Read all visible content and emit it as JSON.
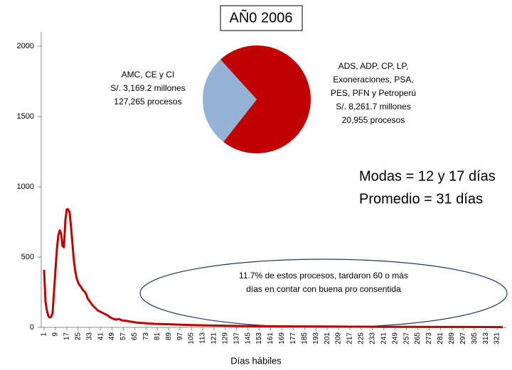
{
  "chart_data": [
    {
      "type": "line",
      "title": "AÑ0 2006",
      "x_label": "Días hábiles",
      "annotations": [
        "Modas = 12 y 17 días",
        "Promedio = 31 días"
      ],
      "ellipse_note": [
        "11.7% de estos procesos, tardaron 60 o más",
        "días en contar con buena pro consentida"
      ],
      "x": [
        1,
        2,
        3,
        4,
        5,
        6,
        7,
        8,
        9,
        10,
        11,
        12,
        13,
        14,
        15,
        16,
        17,
        18,
        19,
        20,
        21,
        22,
        23,
        24,
        25,
        26,
        27,
        28,
        29,
        30,
        31,
        32,
        33,
        34,
        35,
        36,
        37,
        38,
        39,
        40,
        41,
        42,
        43,
        44,
        45,
        46,
        47,
        48,
        49,
        50,
        52,
        54,
        56,
        58,
        60,
        63,
        66,
        70,
        75,
        80,
        90,
        100,
        110,
        120,
        140,
        160,
        180,
        200,
        220,
        240,
        260,
        280,
        300,
        325
      ],
      "series": [
        {
          "name": "Procesos",
          "color": "#c00000",
          "values": [
            410,
            180,
            120,
            80,
            70,
            75,
            100,
            250,
            400,
            550,
            650,
            690,
            670,
            580,
            570,
            760,
            840,
            840,
            820,
            720,
            600,
            480,
            400,
            350,
            320,
            300,
            290,
            270,
            260,
            250,
            230,
            200,
            190,
            175,
            160,
            150,
            140,
            130,
            120,
            115,
            110,
            105,
            100,
            95,
            90,
            85,
            75,
            70,
            65,
            60,
            55,
            60,
            50,
            48,
            45,
            40,
            35,
            32,
            28,
            25,
            22,
            18,
            15,
            13,
            10,
            8,
            7,
            6,
            5,
            4,
            4,
            3,
            3,
            2
          ]
        }
      ],
      "xlim": [
        1,
        325
      ],
      "xticks": [
        1,
        9,
        17,
        25,
        33,
        41,
        49,
        57,
        65,
        73,
        81,
        89,
        97,
        105,
        113,
        121,
        129,
        137,
        145,
        153,
        161,
        169,
        177,
        185,
        193,
        201,
        209,
        217,
        225,
        233,
        241,
        249,
        257,
        265,
        273,
        281,
        289,
        297,
        305,
        313,
        321
      ],
      "ylim": [
        0,
        2000
      ],
      "yticks": [
        0,
        500,
        1000,
        1500,
        2000
      ]
    },
    {
      "type": "pie",
      "slices": [
        {
          "label_lines": [
            "AMC, CE y CI"
          ],
          "value": 3169.2,
          "value_label": "S/. 3,169.2 millones",
          "count_label": "127,265 procesos",
          "color": "#95b3d7"
        },
        {
          "label_lines": [
            "ADS, ADP, CP, LP,",
            "Exoneraciones, PSA,",
            "PES, PFN y Petroperú"
          ],
          "value": 8261.7,
          "value_label": "S/. 8,261.7 millones",
          "count_label": "20,955 procesos",
          "color": "#c00000"
        }
      ]
    }
  ]
}
